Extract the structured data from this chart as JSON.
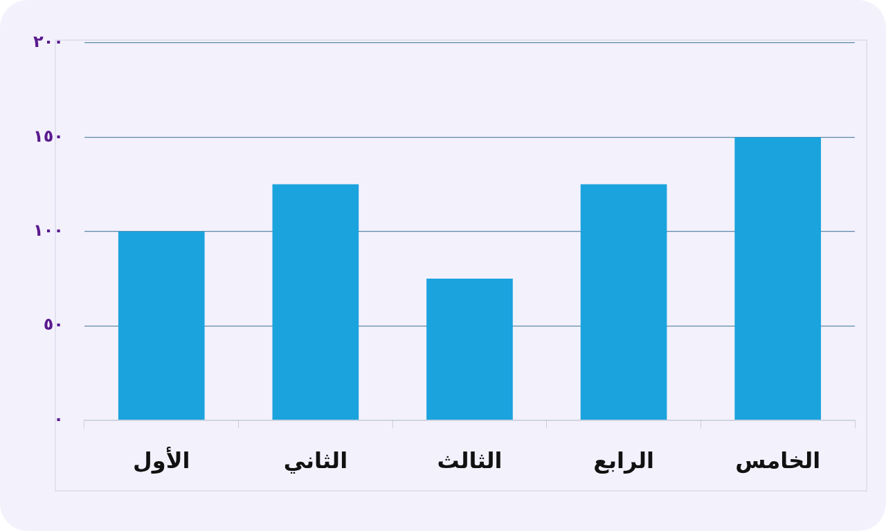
{
  "chart_data": {
    "type": "bar",
    "categories": [
      "الأول",
      "الثاني",
      "الثالث",
      "الرابع",
      "الخامس"
    ],
    "values": [
      100,
      125,
      75,
      125,
      150
    ],
    "color": "#1aa3dd",
    "ylim": [
      0,
      200
    ],
    "yticks": [
      {
        "value": 0,
        "label": "٠"
      },
      {
        "value": 50,
        "label": "٥٠"
      },
      {
        "value": 100,
        "label": "١٠٠"
      },
      {
        "value": 150,
        "label": "١٥٠"
      },
      {
        "value": 200,
        "label": "٢٠٠"
      }
    ],
    "grid": "y"
  }
}
